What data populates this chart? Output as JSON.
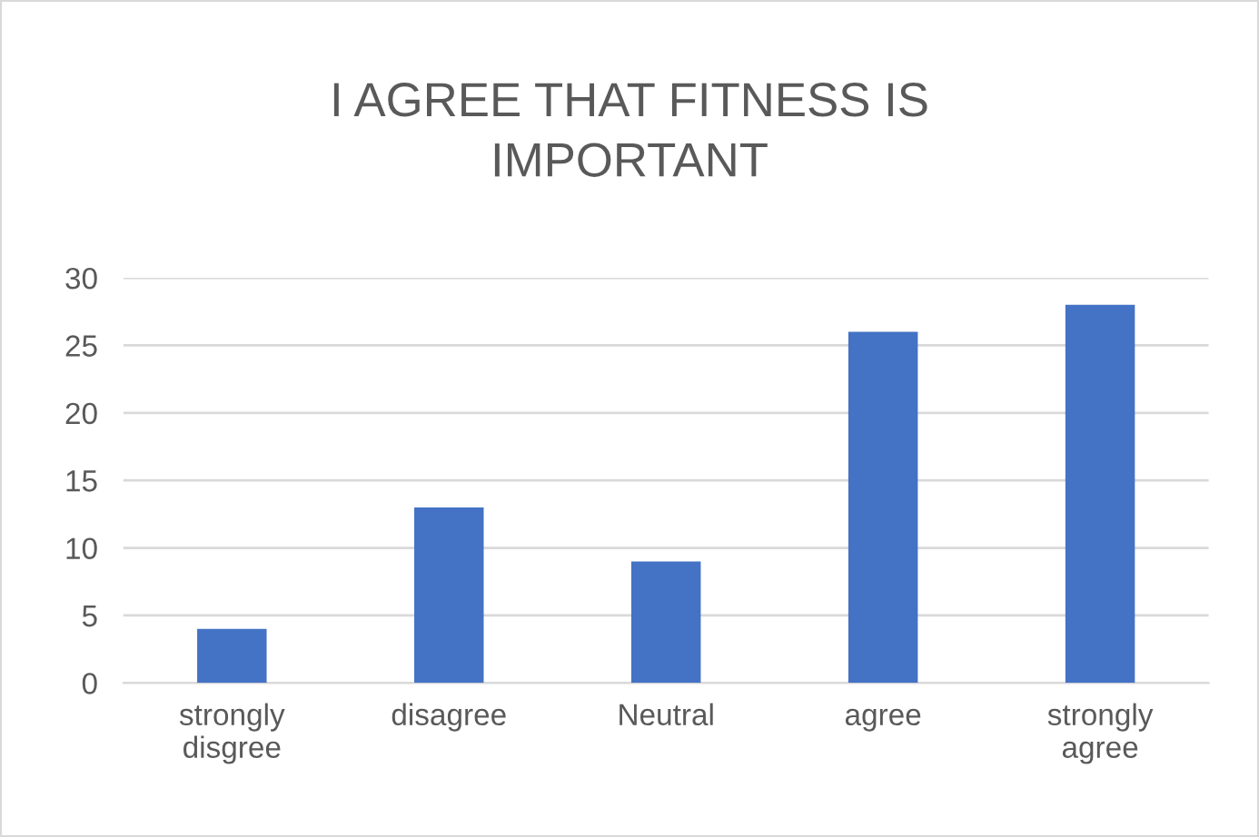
{
  "chart_data": {
    "type": "bar",
    "title": "I AGREE THAT FITNESS IS\nIMPORTANT",
    "categories": [
      "strongly disgree",
      "disagree",
      "Neutral",
      "agree",
      "strongly agree"
    ],
    "values": [
      4,
      13,
      9,
      26,
      28
    ],
    "color": "#4472c4",
    "ylim": [
      0,
      30
    ],
    "yticks": [
      0,
      5,
      10,
      15,
      20,
      25,
      30
    ],
    "grid": "y",
    "legend": false
  }
}
